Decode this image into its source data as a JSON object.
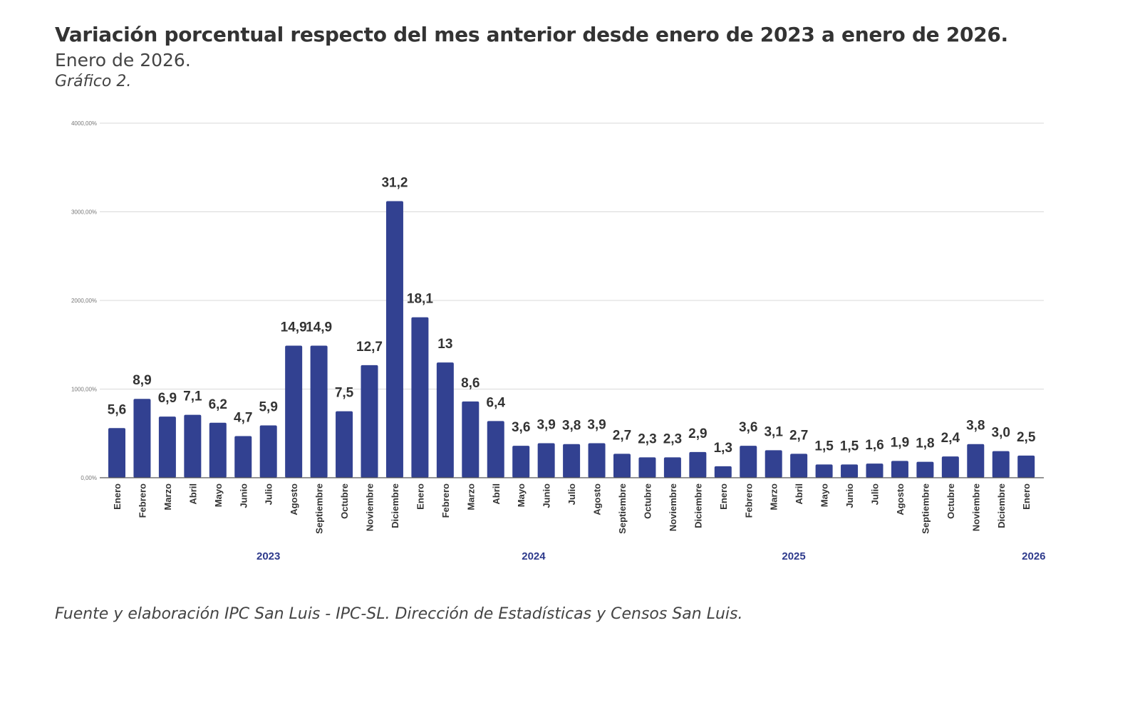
{
  "header": {
    "title": "Variación porcentual respecto del mes anterior desde enero de 2023 a enero de 2026.",
    "subtitle": "Enero de 2026.",
    "chart_number": "Gráfico 2."
  },
  "footer": {
    "source": "Fuente y elaboración IPC San Luis - IPC-SL. Dirección de Estadísticas y Censos San Luis."
  },
  "colors": {
    "bar": "#324191",
    "grid": "#d9d9d9",
    "year_label": "#2e3a8c"
  },
  "chart_data": {
    "type": "bar",
    "title": "Variación porcentual respecto del mes anterior desde enero de 2023 a enero de 2026.",
    "xlabel": "",
    "ylabel": "",
    "ylim": [
      0,
      4000
    ],
    "grid": true,
    "legend": "none",
    "y_ticks": [
      0,
      1000,
      2000,
      3000,
      4000
    ],
    "y_tick_labels": [
      "0,00%",
      "1000,00%",
      "2000,00%",
      "3000,00%",
      "4000,00%"
    ],
    "axis_scale_note": "bars plotted at label value × 100 on the axis",
    "categories": [
      "Enero",
      "Febrero",
      "Marzo",
      "Abril",
      "Mayo",
      "Junio",
      "Julio",
      "Agosto",
      "Septiembre",
      "Octubre",
      "Noviembre",
      "Diciembre",
      "Enero",
      "Febrero",
      "Marzo",
      "Abril",
      "Mayo",
      "Junio",
      "Julio",
      "Agosto",
      "Septiembre",
      "Octubre",
      "Noviembre",
      "Diciembre",
      "Enero",
      "Febrero",
      "Marzo",
      "Abril",
      "Mayo",
      "Junio",
      "Julio",
      "Agosto",
      "Septiembre",
      "Octubre",
      "Noviembre",
      "Diciembre",
      "Enero"
    ],
    "values": [
      5.6,
      8.9,
      6.9,
      7.1,
      6.2,
      4.7,
      5.9,
      14.9,
      14.9,
      7.5,
      12.7,
      31.2,
      18.1,
      13,
      8.6,
      6.4,
      3.6,
      3.9,
      3.8,
      3.9,
      2.7,
      2.3,
      2.3,
      2.9,
      1.3,
      3.6,
      3.1,
      2.7,
      1.5,
      1.5,
      1.6,
      1.9,
      1.8,
      2.4,
      3.8,
      3.0,
      2.5
    ],
    "data_labels": [
      "5,6",
      "8,9",
      "6,9",
      "7,1",
      "6,2",
      "4,7",
      "5,9",
      "14,9",
      "14,9",
      "7,5",
      "12,7",
      "31,2",
      "18,1",
      "13",
      "8,6",
      "6,4",
      "3,6",
      "3,9",
      "3,8",
      "3,9",
      "2,7",
      "2,3",
      "2,3",
      "2,9",
      "1,3",
      "3,6",
      "3,1",
      "2,7",
      "1,5",
      "1,5",
      "1,6",
      "1,9",
      "1,8",
      "2,4",
      "3,8",
      "3,0",
      "2,5"
    ],
    "year_groups": [
      {
        "label": "2023",
        "start": 0,
        "end": 11
      },
      {
        "label": "2024",
        "start": 12,
        "end": 23
      },
      {
        "label": "2025",
        "start": 24,
        "end": 35
      },
      {
        "label": "2026",
        "start": 36,
        "end": 36
      }
    ]
  }
}
